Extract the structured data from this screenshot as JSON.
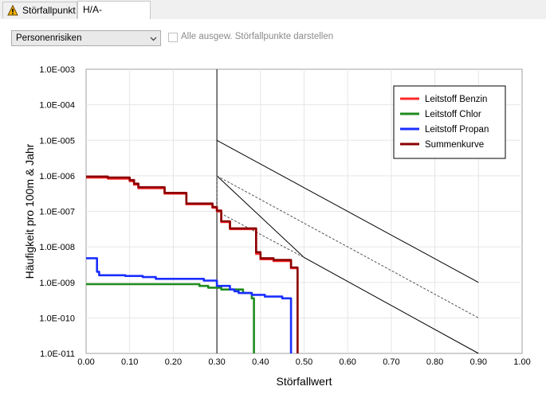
{
  "tabs": [
    {
      "label": "Störfallpunkt",
      "icon": "warning-icon"
    },
    {
      "label": "H/A-Diagramm",
      "active": true
    }
  ],
  "controls": {
    "dropdown_value": "Personenrisiken",
    "checkbox_label": "Alle ausgew. Störfallpunkte darstellen",
    "checkbox_checked": false
  },
  "chart_data": {
    "type": "line",
    "xlabel": "Störfallwert",
    "ylabel": "Häufigkeit pro 100m & Jahr",
    "xlim": [
      0,
      1
    ],
    "ylim_exp": [
      -11,
      -3
    ],
    "y_scale": "log",
    "x_ticks": [
      "0.00",
      "0.10",
      "0.20",
      "0.30",
      "0.40",
      "0.50",
      "0.60",
      "0.70",
      "0.80",
      "0.90",
      "1.00"
    ],
    "y_ticks": [
      "1.0E-011",
      "1.0E-010",
      "1.0E-009",
      "1.0E-008",
      "1.0E-007",
      "1.0E-006",
      "1.0E-005",
      "1.0E-004",
      "1.0E-003"
    ],
    "legend_position": "top-right",
    "series": [
      {
        "name": "Leitstoff Benzin",
        "color": "#ff2a2a",
        "points": [
          [
            0.0,
            -6.05
          ],
          [
            0.03,
            -6.05
          ],
          [
            0.05,
            -6.08
          ],
          [
            0.09,
            -6.08
          ],
          [
            0.1,
            -6.15
          ],
          [
            0.11,
            -6.25
          ],
          [
            0.12,
            -6.35
          ],
          [
            0.18,
            -6.5
          ],
          [
            0.23,
            -6.8
          ],
          [
            0.29,
            -6.9
          ],
          [
            0.3,
            -7.0
          ],
          [
            0.31,
            -7.3
          ],
          [
            0.32,
            -7.3
          ],
          [
            0.33,
            -7.5
          ],
          [
            0.38,
            -7.5
          ],
          [
            0.39,
            -8.2
          ],
          [
            0.4,
            -8.35
          ],
          [
            0.42,
            -8.35
          ],
          [
            0.43,
            -8.4
          ],
          [
            0.46,
            -8.4
          ],
          [
            0.47,
            -8.6
          ],
          [
            0.48,
            -8.6
          ],
          [
            0.485,
            -11
          ]
        ]
      },
      {
        "name": "Leitstoff Chlor",
        "color": "#1e8c1e",
        "points": [
          [
            0.0,
            -9.05
          ],
          [
            0.25,
            -9.05
          ],
          [
            0.26,
            -9.1
          ],
          [
            0.28,
            -9.15
          ],
          [
            0.3,
            -9.15
          ],
          [
            0.31,
            -9.2
          ],
          [
            0.33,
            -9.2
          ],
          [
            0.36,
            -9.3
          ],
          [
            0.38,
            -9.45
          ],
          [
            0.385,
            -11
          ]
        ]
      },
      {
        "name": "Leitstoff Propan",
        "color": "#1a2eff",
        "points": [
          [
            0.0,
            -8.32
          ],
          [
            0.02,
            -8.32
          ],
          [
            0.025,
            -8.7
          ],
          [
            0.03,
            -8.8
          ],
          [
            0.09,
            -8.82
          ],
          [
            0.13,
            -8.85
          ],
          [
            0.16,
            -8.9
          ],
          [
            0.2,
            -8.9
          ],
          [
            0.27,
            -8.95
          ],
          [
            0.3,
            -9.1
          ],
          [
            0.32,
            -9.1
          ],
          [
            0.33,
            -9.2
          ],
          [
            0.34,
            -9.25
          ],
          [
            0.35,
            -9.3
          ],
          [
            0.37,
            -9.3
          ],
          [
            0.38,
            -9.35
          ],
          [
            0.4,
            -9.35
          ],
          [
            0.41,
            -9.4
          ],
          [
            0.44,
            -9.4
          ],
          [
            0.45,
            -9.45
          ],
          [
            0.465,
            -9.45
          ],
          [
            0.47,
            -11
          ]
        ]
      },
      {
        "name": "Summenkurve",
        "color": "#8b0000",
        "points": [
          [
            0.0,
            -6.02
          ],
          [
            0.03,
            -6.02
          ],
          [
            0.05,
            -6.05
          ],
          [
            0.09,
            -6.05
          ],
          [
            0.1,
            -6.12
          ],
          [
            0.11,
            -6.22
          ],
          [
            0.12,
            -6.32
          ],
          [
            0.18,
            -6.48
          ],
          [
            0.23,
            -6.78
          ],
          [
            0.29,
            -6.88
          ],
          [
            0.3,
            -6.98
          ],
          [
            0.31,
            -7.28
          ],
          [
            0.32,
            -7.28
          ],
          [
            0.33,
            -7.48
          ],
          [
            0.38,
            -7.48
          ],
          [
            0.39,
            -8.15
          ],
          [
            0.4,
            -8.32
          ],
          [
            0.42,
            -8.32
          ],
          [
            0.43,
            -8.37
          ],
          [
            0.46,
            -8.37
          ],
          [
            0.47,
            -8.58
          ],
          [
            0.48,
            -8.58
          ],
          [
            0.485,
            -11
          ]
        ]
      }
    ],
    "reference_lines": [
      {
        "style": "solid",
        "points": [
          [
            0.3,
            -3
          ],
          [
            0.3,
            -11
          ]
        ]
      },
      {
        "style": "solid",
        "points": [
          [
            0.3,
            -5
          ],
          [
            0.9,
            -9
          ]
        ]
      },
      {
        "style": "solid",
        "points": [
          [
            0.3,
            -6
          ],
          [
            0.5,
            -8.3
          ],
          [
            0.9,
            -11
          ]
        ]
      },
      {
        "style": "dashed",
        "points": [
          [
            0.3,
            -6
          ],
          [
            0.9,
            -10
          ]
        ]
      },
      {
        "style": "dashed",
        "points": [
          [
            0.3,
            -6
          ],
          [
            0.3,
            -7
          ]
        ]
      },
      {
        "style": "dashed",
        "points": [
          [
            0.3,
            -7
          ],
          [
            0.5,
            -8.3
          ]
        ]
      }
    ]
  }
}
